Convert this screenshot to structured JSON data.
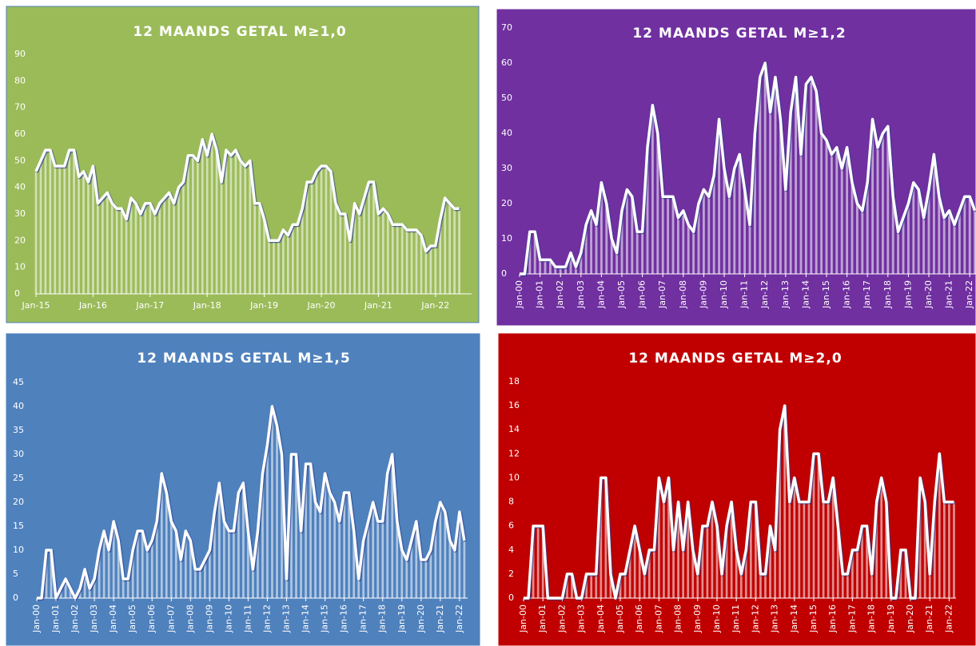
{
  "chart_data": [
    {
      "type": "line",
      "title": "12 MAANDS GETAL M≥1,0",
      "categories": [
        "Jan-15",
        null,
        null,
        null,
        null,
        null,
        null,
        null,
        null,
        null,
        null,
        null,
        "Jan-16",
        null,
        null,
        null,
        null,
        null,
        null,
        null,
        null,
        null,
        null,
        null,
        "Jan-17",
        null,
        null,
        null,
        null,
        null,
        null,
        null,
        null,
        null,
        null,
        null,
        "Jan-18",
        null,
        null,
        null,
        null,
        null,
        null,
        null,
        null,
        null,
        null,
        null,
        "Jan-19",
        null,
        null,
        null,
        null,
        null,
        null,
        null,
        null,
        null,
        null,
        null,
        "Jan-20",
        null,
        null,
        null,
        null,
        null,
        null,
        null,
        null,
        null,
        null,
        null,
        "Jan-21",
        null,
        null,
        null,
        null,
        null,
        null,
        null,
        null,
        null,
        null,
        null,
        "Jan-22",
        null,
        null,
        null,
        null,
        null
      ],
      "values": [
        46,
        50,
        54,
        54,
        48,
        48,
        48,
        54,
        54,
        44,
        46,
        42,
        48,
        34,
        36,
        38,
        34,
        32,
        32,
        28,
        36,
        34,
        30,
        34,
        34,
        30,
        34,
        36,
        38,
        34,
        40,
        42,
        52,
        52,
        50,
        58,
        52,
        60,
        54,
        42,
        54,
        52,
        54,
        50,
        48,
        50,
        34,
        34,
        28,
        20,
        20,
        20,
        24,
        22,
        26,
        26,
        32,
        42,
        42,
        46,
        48,
        48,
        46,
        34,
        30,
        30,
        20,
        34,
        30,
        36,
        42,
        42,
        30,
        32,
        30,
        26,
        26,
        26,
        24,
        24,
        24,
        22,
        16,
        18,
        18,
        28,
        36,
        34,
        32,
        32
      ],
      "color": "#ffffff",
      "ylim": [
        0,
        90
      ],
      "yticks": [
        0,
        10,
        20,
        30,
        40,
        50,
        60,
        70,
        80,
        90
      ]
    },
    {
      "type": "line",
      "title": "12 MAANDS GETAL M≥1,2",
      "categories": [
        "Jan-00",
        null,
        null,
        null,
        "Jan-01",
        null,
        null,
        null,
        "Jan-02",
        null,
        null,
        null,
        "Jan-03",
        null,
        null,
        null,
        "Jan-04",
        null,
        null,
        null,
        "Jan-05",
        null,
        null,
        null,
        "Jan-06",
        null,
        null,
        null,
        "Jan-07",
        null,
        null,
        null,
        "Jan-08",
        null,
        null,
        null,
        "Jan-09",
        null,
        null,
        null,
        "Jan-10",
        null,
        null,
        null,
        "Jan-11",
        null,
        null,
        null,
        "Jan-12",
        null,
        null,
        null,
        "Jan-13",
        null,
        null,
        null,
        "Jan-14",
        null,
        null,
        null,
        "Jan-15",
        null,
        null,
        null,
        "Jan-16",
        null,
        null,
        null,
        "Jan-17",
        null,
        null,
        null,
        "Jan-18",
        null,
        null,
        null,
        "Jan-19",
        null,
        null,
        null,
        "Jan-20",
        null,
        null,
        null,
        "Jan-21",
        null,
        null,
        null,
        "Jan-22",
        null
      ],
      "values": [
        0,
        0,
        12,
        12,
        4,
        4,
        4,
        2,
        2,
        2,
        6,
        2,
        6,
        14,
        18,
        14,
        26,
        20,
        10,
        6,
        18,
        24,
        22,
        12,
        12,
        36,
        48,
        40,
        22,
        22,
        22,
        16,
        18,
        14,
        12,
        20,
        24,
        22,
        28,
        44,
        30,
        22,
        30,
        34,
        24,
        14,
        40,
        56,
        60,
        46,
        56,
        44,
        24,
        46,
        56,
        34,
        54,
        56,
        52,
        40,
        38,
        34,
        36,
        30,
        36,
        26,
        20,
        18,
        26,
        44,
        36,
        40,
        42,
        22,
        12,
        16,
        20,
        26,
        24,
        16,
        24,
        34,
        22,
        16,
        18,
        14,
        18,
        22,
        22,
        18
      ],
      "color": "#ffffff",
      "ylim": [
        0,
        70
      ],
      "yticks": [
        0,
        10,
        20,
        30,
        40,
        50,
        60,
        70
      ]
    },
    {
      "type": "line",
      "title": "12 MAANDS GETAL M≥1,5",
      "categories": [
        "Jan-00",
        null,
        null,
        null,
        "Jan-01",
        null,
        null,
        null,
        "Jan-02",
        null,
        null,
        null,
        "Jan-03",
        null,
        null,
        null,
        "Jan-04",
        null,
        null,
        null,
        "Jan-05",
        null,
        null,
        null,
        "Jan-06",
        null,
        null,
        null,
        "Jan-07",
        null,
        null,
        null,
        "Jan-08",
        null,
        null,
        null,
        "Jan-09",
        null,
        null,
        null,
        "Jan-10",
        null,
        null,
        null,
        "Jan-11",
        null,
        null,
        null,
        "Jan-12",
        null,
        null,
        null,
        "Jan-13",
        null,
        null,
        null,
        "Jan-14",
        null,
        null,
        null,
        "Jan-15",
        null,
        null,
        null,
        "Jan-16",
        null,
        null,
        null,
        "Jan-17",
        null,
        null,
        null,
        "Jan-18",
        null,
        null,
        null,
        "Jan-19",
        null,
        null,
        null,
        "Jan-20",
        null,
        null,
        null,
        "Jan-21",
        null,
        null,
        null,
        "Jan-22",
        null
      ],
      "values": [
        0,
        0,
        10,
        10,
        0,
        2,
        4,
        2,
        0,
        2,
        6,
        2,
        4,
        10,
        14,
        10,
        16,
        12,
        4,
        4,
        10,
        14,
        14,
        10,
        12,
        16,
        26,
        22,
        16,
        14,
        8,
        14,
        12,
        6,
        6,
        8,
        10,
        18,
        24,
        16,
        14,
        14,
        22,
        24,
        14,
        6,
        14,
        26,
        32,
        40,
        36,
        30,
        4,
        30,
        30,
        14,
        28,
        28,
        20,
        18,
        26,
        22,
        20,
        16,
        22,
        22,
        14,
        4,
        12,
        16,
        20,
        16,
        16,
        26,
        30,
        16,
        10,
        8,
        12,
        16,
        8,
        8,
        10,
        16,
        20,
        18,
        12,
        10,
        18,
        12
      ],
      "color": "#ffffff",
      "ylim": [
        0,
        45
      ],
      "yticks": [
        0,
        5,
        10,
        15,
        20,
        25,
        30,
        35,
        40,
        45
      ]
    },
    {
      "type": "line",
      "title": "12 MAANDS GETAL M≥2,0",
      "categories": [
        "Jan-00",
        null,
        null,
        null,
        "Jan-01",
        null,
        null,
        null,
        "Jan-02",
        null,
        null,
        null,
        "Jan-03",
        null,
        null,
        null,
        "Jan-04",
        null,
        null,
        null,
        "Jan-05",
        null,
        null,
        null,
        "Jan-06",
        null,
        null,
        null,
        "Jan-07",
        null,
        null,
        null,
        "Jan-08",
        null,
        null,
        null,
        "Jan-09",
        null,
        null,
        null,
        "Jan-10",
        null,
        null,
        null,
        "Jan-11",
        null,
        null,
        null,
        "Jan-12",
        null,
        null,
        null,
        "Jan-13",
        null,
        null,
        null,
        "Jan-14",
        null,
        null,
        null,
        "Jan-15",
        null,
        null,
        null,
        "Jan-16",
        null,
        null,
        null,
        "Jan-17",
        null,
        null,
        null,
        "Jan-18",
        null,
        null,
        null,
        "Jan-19",
        null,
        null,
        null,
        "Jan-20",
        null,
        null,
        null,
        "Jan-21",
        null,
        null,
        null,
        "Jan-22",
        null
      ],
      "values": [
        0,
        0,
        6,
        6,
        6,
        0,
        0,
        0,
        0,
        2,
        2,
        0,
        0,
        2,
        2,
        2,
        10,
        10,
        2,
        0,
        2,
        2,
        4,
        6,
        4,
        2,
        4,
        4,
        10,
        8,
        10,
        4,
        8,
        4,
        8,
        4,
        2,
        6,
        6,
        8,
        6,
        2,
        6,
        8,
        4,
        2,
        4,
        8,
        8,
        2,
        2,
        6,
        4,
        14,
        16,
        8,
        10,
        8,
        8,
        8,
        12,
        12,
        8,
        8,
        10,
        6,
        2,
        2,
        4,
        4,
        6,
        6,
        2,
        8,
        10,
        8,
        0,
        0,
        4,
        4,
        0,
        0,
        10,
        8,
        2,
        8,
        12,
        8,
        8,
        8
      ],
      "color": "#ffffff",
      "ylim": [
        0,
        18
      ],
      "yticks": [
        0,
        2,
        4,
        6,
        8,
        10,
        12,
        14,
        16,
        18
      ]
    }
  ]
}
